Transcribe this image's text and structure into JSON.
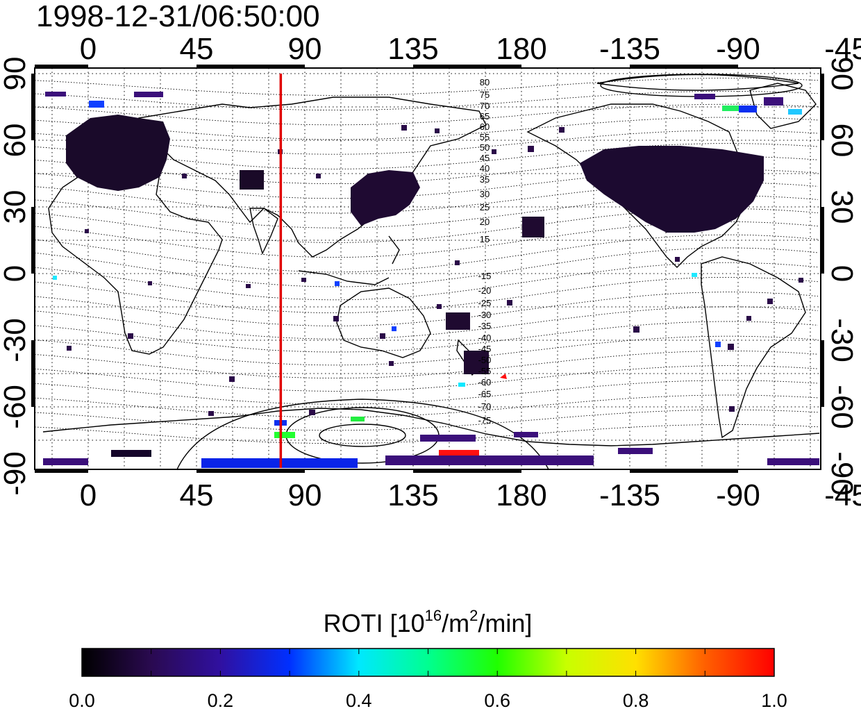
{
  "timestamp": "1998-12-31/06:50:00",
  "lon_ticks": [
    "0",
    "45",
    "90",
    "135",
    "180",
    "-135",
    "-90",
    "-45"
  ],
  "lat_ticks": [
    "90",
    "60",
    "30",
    "0",
    "-30",
    "-60",
    "-90"
  ],
  "magnetic_lat_labels": [
    "80",
    "75",
    "70",
    "65",
    "60",
    "55",
    "50",
    "45",
    "40",
    "35",
    "30",
    "25",
    "20",
    "15",
    "-15",
    "-20",
    "-25",
    "-30",
    "-35",
    "-40",
    "-45",
    "-50",
    "-55",
    "-60",
    "-65",
    "-70",
    "-75"
  ],
  "colorbar": {
    "title_prefix": "ROTI  [10",
    "title_sup1": "16",
    "title_mid": "/m",
    "title_sup2": "2",
    "title_suffix": "/min]",
    "ticks": [
      "0.0",
      "0.2",
      "0.4",
      "0.6",
      "0.8",
      "1.0"
    ],
    "range": [
      0.0,
      1.0
    ]
  },
  "marker_longitude": 80,
  "colors": {
    "marker": "#e00000",
    "frame": "#000000"
  }
}
